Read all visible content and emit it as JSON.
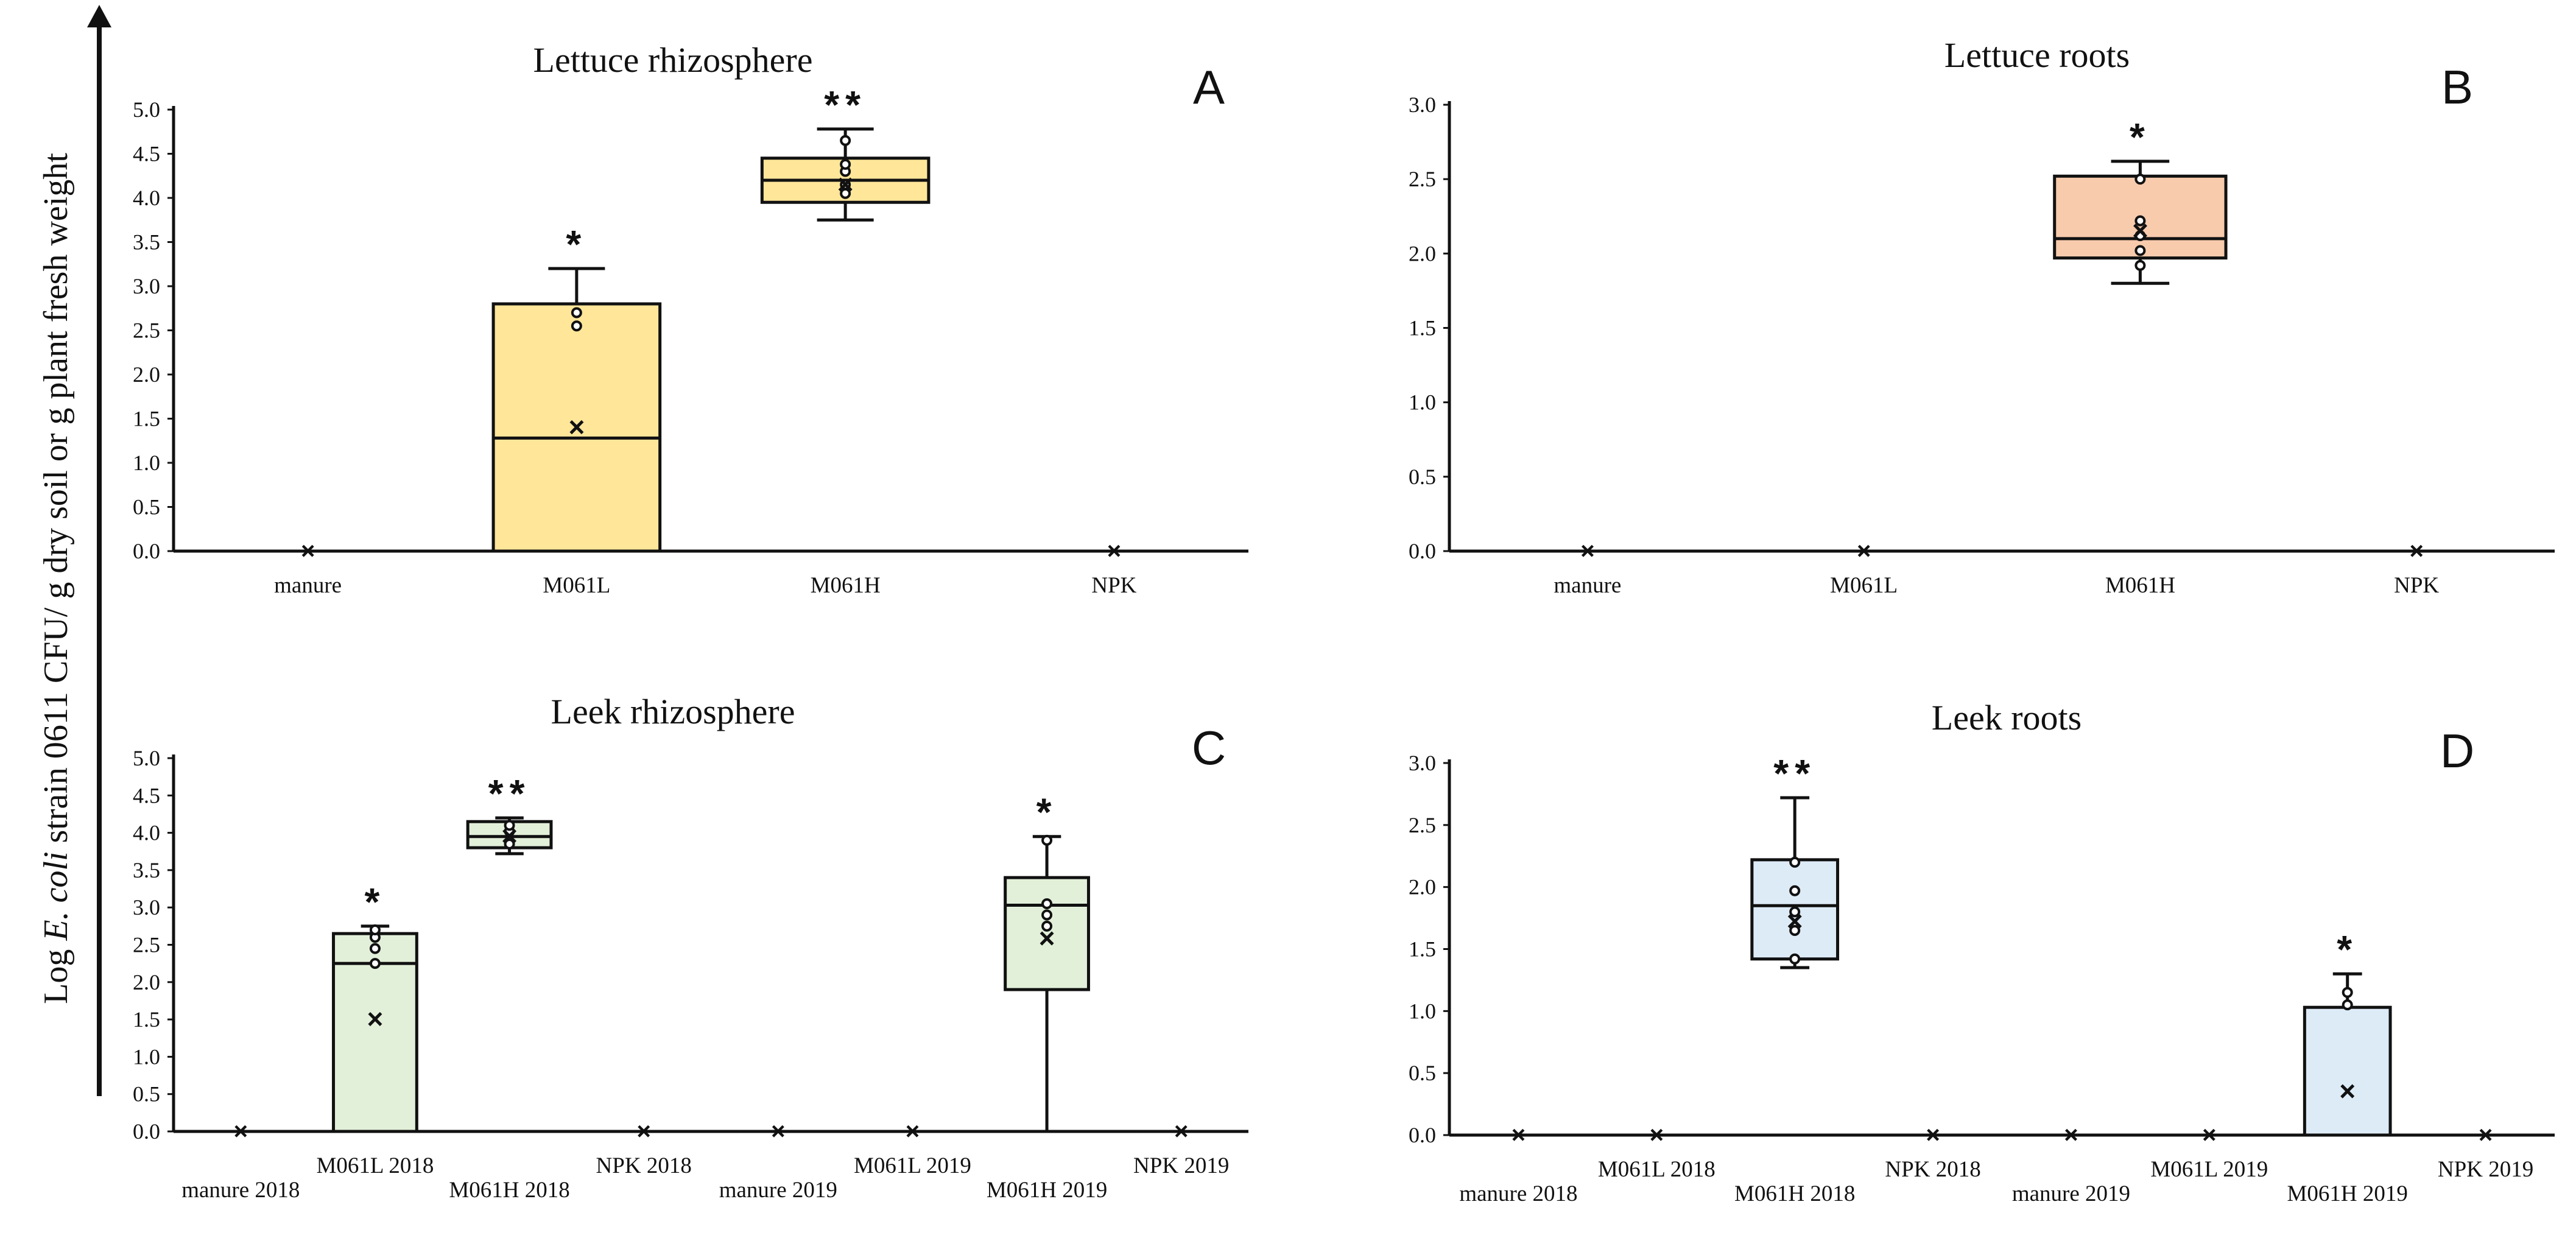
{
  "y_axis_label": {
    "prefix": "Log ",
    "italic": "E. coli",
    "suffix": " strain 0611 CFU/ g dry soil or g plant fresh weight"
  },
  "colors": {
    "lettuce_rhizosphere": "#ffe699",
    "lettuce_roots": "#f8cbad",
    "leek_rhizosphere": "#e2f0d9",
    "leek_roots": "#ddebf7",
    "axis": "#111111"
  },
  "chart_data": [
    {
      "type": "box",
      "panel": "A",
      "title": "Lettuce rhizosphere",
      "ylim": [
        0,
        5.0
      ],
      "yticks": [
        "0.0",
        "0.5",
        "1.0",
        "1.5",
        "2.0",
        "2.5",
        "3.0",
        "3.5",
        "4.0",
        "4.5",
        "5.0"
      ],
      "categories": [
        "manure",
        "M061L",
        "M061H",
        "NPK"
      ],
      "boxes": [
        {
          "category": "manure",
          "min": 0,
          "q1": 0,
          "median": 0,
          "q3": 0,
          "max": 0,
          "mean": 0,
          "points": [],
          "significance": ""
        },
        {
          "category": "M061L",
          "min": 0,
          "q1": 0,
          "median": 1.28,
          "q3": 2.8,
          "max": 3.2,
          "mean": 1.4,
          "points": [
            2.55,
            2.7
          ],
          "significance": "*"
        },
        {
          "category": "M061H",
          "min": 3.75,
          "q1": 3.95,
          "median": 4.2,
          "q3": 4.45,
          "max": 4.78,
          "mean": 4.15,
          "points": [
            4.05,
            4.15,
            4.3,
            4.38,
            4.65
          ],
          "significance": "**"
        },
        {
          "category": "NPK",
          "min": 0,
          "q1": 0,
          "median": 0,
          "q3": 0,
          "max": 0,
          "mean": 0,
          "points": [],
          "significance": ""
        }
      ]
    },
    {
      "type": "box",
      "panel": "B",
      "title": "Lettuce roots",
      "ylim": [
        0,
        3.0
      ],
      "yticks": [
        "0.0",
        "0.5",
        "1.0",
        "1.5",
        "2.0",
        "2.5",
        "3.0"
      ],
      "categories": [
        "manure",
        "M061L",
        "M061H",
        "NPK"
      ],
      "boxes": [
        {
          "category": "manure",
          "min": 0,
          "q1": 0,
          "median": 0,
          "q3": 0,
          "max": 0,
          "mean": 0,
          "points": [],
          "significance": ""
        },
        {
          "category": "M061L",
          "min": 0,
          "q1": 0,
          "median": 0,
          "q3": 0,
          "max": 0,
          "mean": 0,
          "points": [],
          "significance": ""
        },
        {
          "category": "M061H",
          "min": 1.8,
          "q1": 1.97,
          "median": 2.1,
          "q3": 2.52,
          "max": 2.62,
          "mean": 2.15,
          "points": [
            1.92,
            2.02,
            2.12,
            2.22,
            2.5
          ],
          "significance": "*"
        },
        {
          "category": "NPK",
          "min": 0,
          "q1": 0,
          "median": 0,
          "q3": 0,
          "max": 0,
          "mean": 0,
          "points": [],
          "significance": ""
        }
      ]
    },
    {
      "type": "box",
      "panel": "C",
      "title": "Leek rhizosphere",
      "ylim": [
        0,
        5.0
      ],
      "yticks": [
        "0.0",
        "0.5",
        "1.0",
        "1.5",
        "2.0",
        "2.5",
        "3.0",
        "3.5",
        "4.0",
        "4.5",
        "5.0"
      ],
      "categories": [
        "manure 2018",
        "M061L 2018",
        "M061H 2018",
        "NPK 2018",
        "manure 2019",
        "M061L 2019",
        "M061H 2019",
        "NPK 2019"
      ],
      "boxes": [
        {
          "category": "manure 2018",
          "min": 0,
          "q1": 0,
          "median": 0,
          "q3": 0,
          "max": 0,
          "mean": 0,
          "points": [],
          "significance": ""
        },
        {
          "category": "M061L 2018",
          "min": 0,
          "q1": 0,
          "median": 2.25,
          "q3": 2.65,
          "max": 2.75,
          "mean": 1.5,
          "points": [
            2.25,
            2.45,
            2.6,
            2.7
          ],
          "significance": "*"
        },
        {
          "category": "M061H 2018",
          "min": 3.72,
          "q1": 3.8,
          "median": 3.95,
          "q3": 4.15,
          "max": 4.2,
          "mean": 3.95,
          "points": [
            3.85,
            4.02,
            4.1
          ],
          "significance": "**"
        },
        {
          "category": "NPK 2018",
          "min": 0,
          "q1": 0,
          "median": 0,
          "q3": 0,
          "max": 0,
          "mean": 0,
          "points": [],
          "significance": ""
        },
        {
          "category": "manure 2019",
          "min": 0,
          "q1": 0,
          "median": 0,
          "q3": 0,
          "max": 0,
          "mean": 0,
          "points": [],
          "significance": ""
        },
        {
          "category": "M061L 2019",
          "min": 0,
          "q1": 0,
          "median": 0,
          "q3": 0,
          "max": 0,
          "mean": 0,
          "points": [],
          "significance": ""
        },
        {
          "category": "M061H 2019",
          "min": 0,
          "q1": 1.9,
          "median": 3.03,
          "q3": 3.4,
          "max": 3.95,
          "mean": 2.58,
          "points": [
            2.75,
            2.9,
            3.05,
            3.9
          ],
          "significance": "*"
        },
        {
          "category": "NPK 2019",
          "min": 0,
          "q1": 0,
          "median": 0,
          "q3": 0,
          "max": 0,
          "mean": 0,
          "points": [],
          "significance": ""
        }
      ]
    },
    {
      "type": "box",
      "panel": "D",
      "title": "Leek roots",
      "ylim": [
        0,
        3.0
      ],
      "yticks": [
        "0.0",
        "0.5",
        "1.0",
        "1.5",
        "2.0",
        "2.5",
        "3.0"
      ],
      "categories": [
        "manure 2018",
        "M061L 2018",
        "M061H 2018",
        "NPK 2018",
        "manure 2019",
        "M061L 2019",
        "M061H 2019",
        "NPK 2019"
      ],
      "boxes": [
        {
          "category": "manure 2018",
          "min": 0,
          "q1": 0,
          "median": 0,
          "q3": 0,
          "max": 0,
          "mean": 0,
          "points": [],
          "significance": ""
        },
        {
          "category": "M061L 2018",
          "min": 0,
          "q1": 0,
          "median": 0,
          "q3": 0,
          "max": 0,
          "mean": 0,
          "points": [],
          "significance": ""
        },
        {
          "category": "M061H 2018",
          "min": 1.35,
          "q1": 1.42,
          "median": 1.85,
          "q3": 2.22,
          "max": 2.72,
          "mean": 1.72,
          "points": [
            1.42,
            1.65,
            1.8,
            1.97,
            2.2
          ],
          "significance": "**"
        },
        {
          "category": "NPK 2018",
          "min": 0,
          "q1": 0,
          "median": 0,
          "q3": 0,
          "max": 0,
          "mean": 0,
          "points": [],
          "significance": ""
        },
        {
          "category": "manure 2019",
          "min": 0,
          "q1": 0,
          "median": 0,
          "q3": 0,
          "max": 0,
          "mean": 0,
          "points": [],
          "significance": ""
        },
        {
          "category": "M061L 2019",
          "min": 0,
          "q1": 0,
          "median": 0,
          "q3": 0,
          "max": 0,
          "mean": 0,
          "points": [],
          "significance": ""
        },
        {
          "category": "M061H 2019",
          "min": 0,
          "q1": 0,
          "median": 0,
          "q3": 1.03,
          "max": 1.3,
          "mean": 0.35,
          "points": [
            1.05,
            1.15
          ],
          "significance": "*"
        },
        {
          "category": "NPK 2019",
          "min": 0,
          "q1": 0,
          "median": 0,
          "q3": 0,
          "max": 0,
          "mean": 0,
          "points": [],
          "significance": ""
        }
      ]
    }
  ]
}
